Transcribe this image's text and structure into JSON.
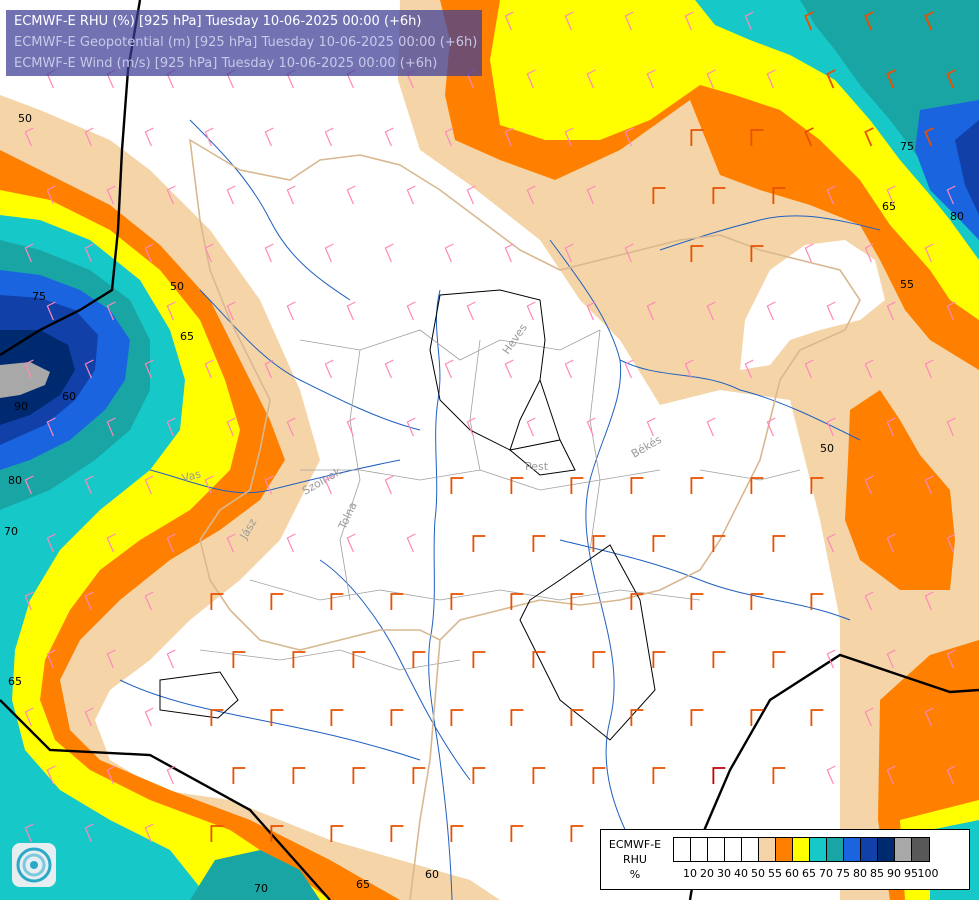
{
  "header": {
    "line1": "ECMWF-E RHU (%) [925 hPa] Tuesday 10-06-2025 00:00 (+6h)",
    "line2": "ECMWF-E Geopotential (m) [925 hPa] Tuesday 10-06-2025 00:00 (+6h)",
    "line3": "ECMWF-E Wind (m/s) [925 hPa] Tuesday 10-06-2025 00:00 (+6h)"
  },
  "legend": {
    "title_line1": "ECMWF-E",
    "title_line2": "RHU",
    "title_line3": "%",
    "ticks": [
      "10",
      "20",
      "30",
      "40",
      "50",
      "55",
      "60",
      "65",
      "70",
      "75",
      "80",
      "85",
      "90",
      "95",
      "100"
    ],
    "colors": [
      "#ffffff",
      "#ffffff",
      "#ffffff",
      "#ffffff",
      "#ffffff",
      "#f5d5a8",
      "#ff8000",
      "#ffff00",
      "#17c8c8",
      "#1aa5a5",
      "#1a64e0",
      "#1040a8",
      "#002a70",
      "#a8a8a8",
      "#585858"
    ]
  },
  "contour_labels": [
    "50",
    "50",
    "55",
    "65",
    "75",
    "80",
    "60",
    "65",
    "70",
    "75",
    "80",
    "90",
    "65",
    "70",
    "50",
    "65",
    "60"
  ],
  "places": [
    "Heves",
    "Pest",
    "Békés",
    "Szolnok",
    "Jász",
    "Tolna",
    "Vas"
  ],
  "colors": {
    "rh_white": "#ffffff",
    "rh_55": "#f5d5a8",
    "rh_60": "#ff8000",
    "rh_65": "#ffff00",
    "rh_70": "#17c8c8",
    "rh_75": "#1aa5a5",
    "rh_80": "#1a64e0",
    "rh_85": "#1040a8",
    "rh_90": "#002a70",
    "rh_95": "#a8a8a8",
    "wind_pink": "#ff88bb",
    "wind_orange": "#e85000",
    "wind_red": "#c00000",
    "rivers": "#2060c0",
    "borders": "#d8b890"
  }
}
